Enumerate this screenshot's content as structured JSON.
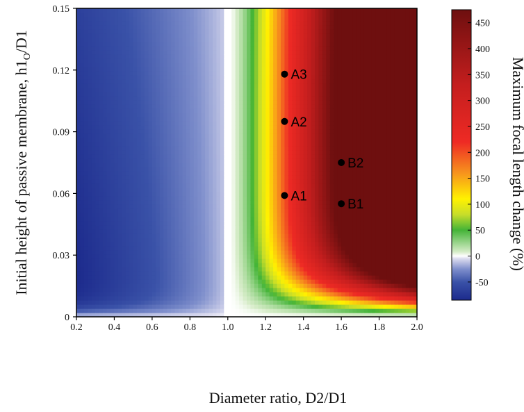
{
  "chart_data": {
    "type": "heatmap",
    "title": "",
    "xlabel": "Diameter ratio, D2/D1",
    "ylabel_main": "Initial height of passive membrane, h1",
    "ylabel_sub": "O",
    "ylabel_tail": "/D1",
    "xlim": [
      0.2,
      2.0
    ],
    "ylim": [
      0,
      0.15
    ],
    "x_ticks": [
      "0.2",
      "0.4",
      "0.6",
      "0.8",
      "1.0",
      "1.2",
      "1.4",
      "1.6",
      "1.8",
      "2.0"
    ],
    "y_ticks": [
      "0",
      "0.03",
      "0.06",
      "0.09",
      "0.12",
      "0.15"
    ],
    "x_tick_values": [
      0.2,
      0.4,
      0.6,
      0.8,
      1.0,
      1.2,
      1.4,
      1.6,
      1.8,
      2.0
    ],
    "y_tick_values": [
      0,
      0.03,
      0.06,
      0.09,
      0.12,
      0.15
    ],
    "grid": false,
    "points": [
      {
        "label": "A3",
        "x": 1.3,
        "y": 0.118
      },
      {
        "label": "A2",
        "x": 1.3,
        "y": 0.095
      },
      {
        "label": "A1",
        "x": 1.3,
        "y": 0.059
      },
      {
        "label": "B2",
        "x": 1.6,
        "y": 0.075
      },
      {
        "label": "B1",
        "x": 1.6,
        "y": 0.055
      }
    ],
    "colorbar": {
      "label": "Maximum focal length change (%)",
      "range": [
        -85,
        475
      ],
      "ticks": [
        "450",
        "400",
        "350",
        "300",
        "250",
        "200",
        "150",
        "100",
        "50",
        "0",
        "-50"
      ],
      "tick_values": [
        450,
        400,
        350,
        300,
        250,
        200,
        150,
        100,
        50,
        0,
        -50
      ],
      "stops": [
        {
          "v": -85,
          "color": "#1c2a8c"
        },
        {
          "v": -50,
          "color": "#3a52a8"
        },
        {
          "v": -25,
          "color": "#7f8fcc"
        },
        {
          "v": -5,
          "color": "#dcdcef"
        },
        {
          "v": 0,
          "color": "#ffffff"
        },
        {
          "v": 8,
          "color": "#d6ecc8"
        },
        {
          "v": 50,
          "color": "#44b437"
        },
        {
          "v": 80,
          "color": "#c7dd2a"
        },
        {
          "v": 110,
          "color": "#fff200"
        },
        {
          "v": 160,
          "color": "#f7941d"
        },
        {
          "v": 220,
          "color": "#ee2a24"
        },
        {
          "v": 330,
          "color": "#c41e1e"
        },
        {
          "v": 475,
          "color": "#6e0f0f"
        }
      ]
    }
  }
}
